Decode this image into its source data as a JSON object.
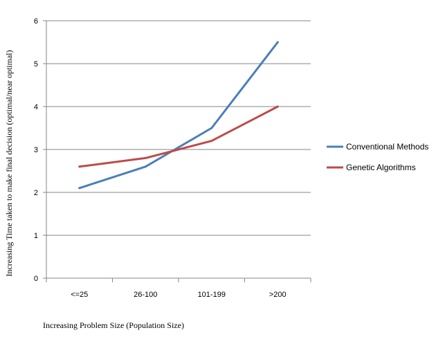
{
  "chart_data": {
    "type": "line",
    "categories": [
      "<=25",
      "26-100",
      "101-199",
      ">200"
    ],
    "series": [
      {
        "name": "Conventional Methods",
        "values": [
          2.1,
          2.6,
          3.5,
          5.5
        ],
        "color": "#4a7ebb"
      },
      {
        "name": "Genetic Algorithms",
        "values": [
          2.6,
          2.8,
          3.2,
          4.0
        ],
        "color": "#be4b48"
      }
    ],
    "yticks": [
      "0",
      "1",
      "2",
      "3",
      "4",
      "5",
      "6"
    ],
    "ylim": [
      0,
      6
    ],
    "ylabel": "Increasing Time taken to make final decision (optimal/near optimal)",
    "xlabel": "Increasing Problem Size (Population Size)",
    "grid": true,
    "legend": "right"
  }
}
